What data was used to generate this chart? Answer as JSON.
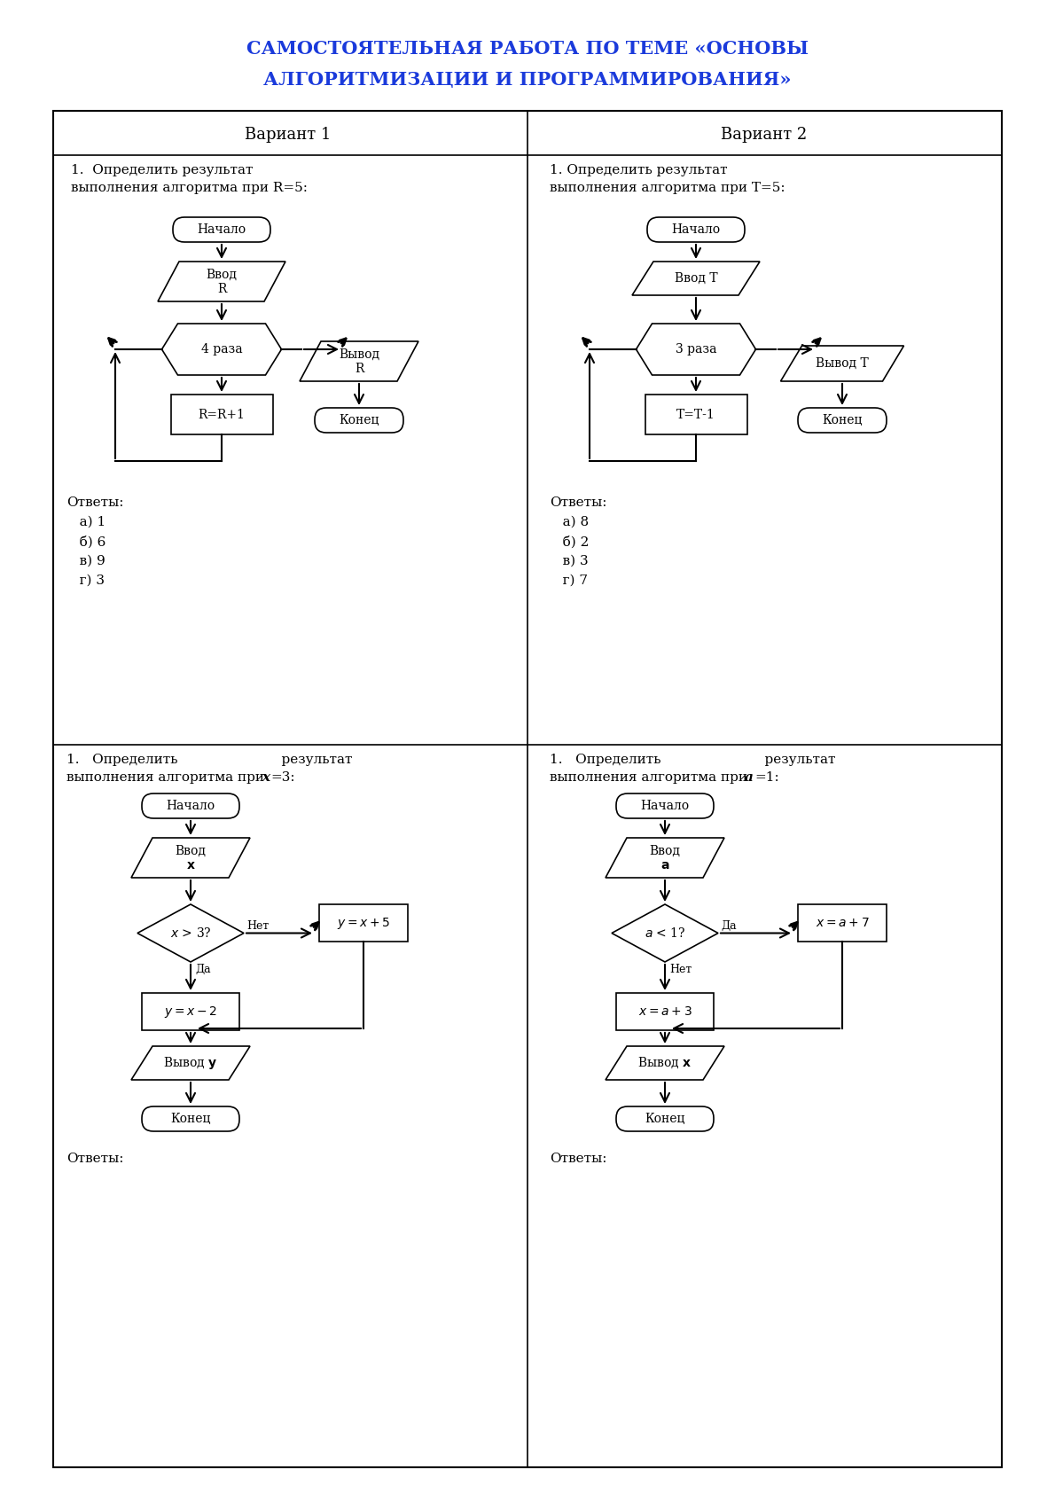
{
  "title_line1": "САМОСТОЯТЕЛЬНАЯ РАБОТА ПО ТЕМЕ «ОСНОВЫ",
  "title_line2": "АЛГОРИТМИЗАЦИИ И ПРОГРАММИРОВАНИЯ»",
  "title_color": "#1a3adb",
  "bg_color": "#ffffff",
  "variant1_header": "Вариант 1",
  "variant2_header": "Вариант 2",
  "v1_task_line1": "1.  Определить результат",
  "v1_task_line2": "выполнения алгоритма при R=5:",
  "v2_task_line1": "1. Определить результат",
  "v2_task_line2": "выполнения алгоритма при Т=5:",
  "v1_answers": [
    "Ответы:",
    "   а) 1",
    "   б) 6",
    "   в) 9",
    "   г) 3"
  ],
  "v2_answers": [
    "Ответы:",
    "   а) 8",
    "   б) 2",
    "   в) 3",
    "   г) 7"
  ],
  "v3_task_line1": "1.   Определить                   результат",
  "v3_task_line2": "выполнения алгоритма при x=3:",
  "v4_task_line1": "1.   Определить                   результат",
  "v4_task_line2": "выполнения алгоритма при a=1:",
  "v3_answers": "Ответы:",
  "v4_answers": "Ответы:"
}
